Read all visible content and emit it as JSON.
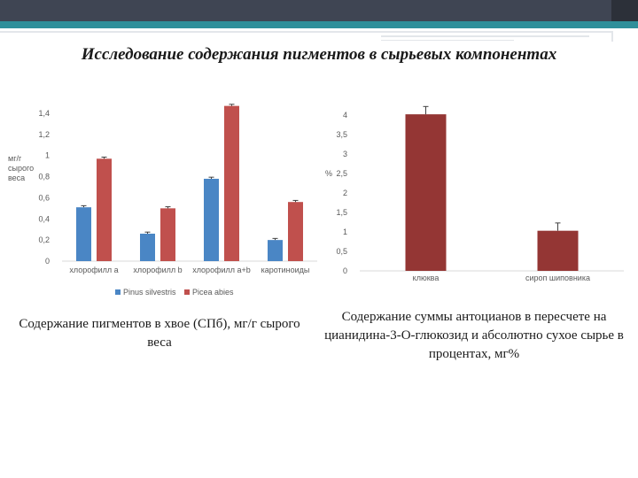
{
  "title": "Исследование содержания пигментов в сырьевых компонентах",
  "captions": {
    "left": "Содержание пигментов в хвое (СПб), мг/г сырого веса",
    "right": "Содержание суммы антоцианов в пересчете на цианидина-3-О-глюкозид и абсолютно сухое сырье в процентах, мг%"
  },
  "chart_data": [
    {
      "type": "bar",
      "ylabel": "мг/г сырого веса",
      "ylim": [
        0,
        1.4
      ],
      "yticks": [
        "0",
        "0,2",
        "0,4",
        "0,6",
        "0,8",
        "1",
        "1,2",
        "1,4"
      ],
      "categories": [
        "хлорофилл а",
        "хлорофилл b",
        "хлорофилл а+b",
        "каротиноиды"
      ],
      "series": [
        {
          "name": "Pinus silvestris",
          "color": "#4a86c5",
          "values": [
            0.51,
            0.26,
            0.78,
            0.2
          ]
        },
        {
          "name": "Picea abies",
          "color": "#c0504d",
          "values": [
            0.97,
            0.5,
            1.47,
            0.56
          ]
        }
      ],
      "legend": "bottom",
      "grid": false
    },
    {
      "type": "bar",
      "ylabel": "%",
      "ylim": [
        0,
        4
      ],
      "yticks": [
        "0",
        "0,5",
        "1",
        "1,5",
        "2",
        "2,5",
        "3",
        "3,5",
        "4"
      ],
      "categories": [
        "клюква",
        "сироп шиповника"
      ],
      "values": [
        4.02,
        1.03
      ],
      "color": "#943634",
      "grid": false
    }
  ]
}
